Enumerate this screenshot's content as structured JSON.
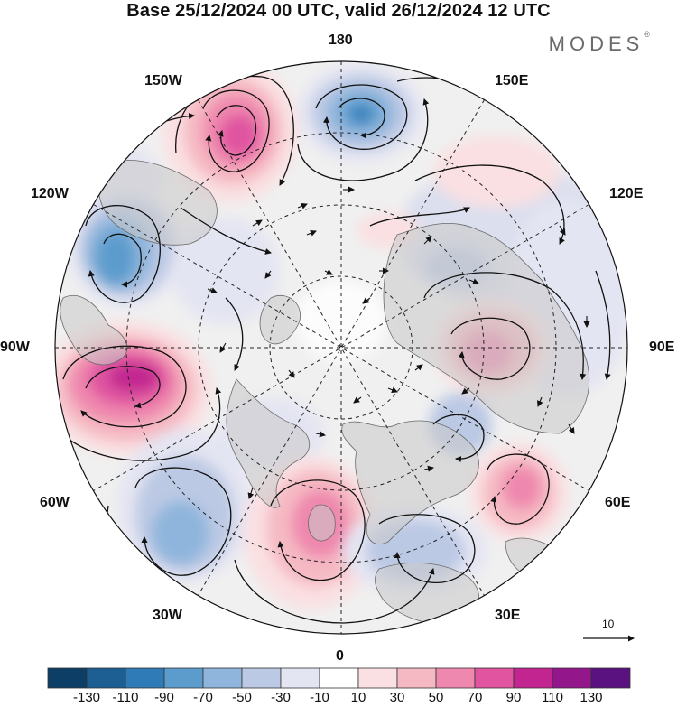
{
  "title": "Base 25/12/2024 00 UTC, valid 26/12/2024 12 UTC",
  "brand": "MODES",
  "brand_mark": "®",
  "longitudes": {
    "n180": "180",
    "n150w": "150W",
    "n150e": "150E",
    "n120w": "120W",
    "n120e": "120E",
    "n90w": "90W",
    "n90e": "90E",
    "n60w": "60W",
    "n60e": "60E",
    "n30w": "30W",
    "n30e": "30E",
    "n0": "0"
  },
  "reference_vector_label": "10",
  "colorbar": {
    "colors": [
      "#0d3e66",
      "#1d5f92",
      "#2f7bb8",
      "#5c9ccd",
      "#8fb5dc",
      "#bcc9e4",
      "#e4e5f2",
      "#ffffff",
      "#fae0e2",
      "#f5b9c3",
      "#ef88ae",
      "#e054a0",
      "#c22590",
      "#93168b",
      "#5a1280"
    ],
    "ticks": [
      "-130",
      "-110",
      "-90",
      "-70",
      "-50",
      "-30",
      "-10",
      "10",
      "30",
      "50",
      "70",
      "90",
      "110",
      "130"
    ]
  },
  "anomaly_centers": [
    {
      "sign": "positive",
      "value": 110,
      "near": "150W"
    },
    {
      "sign": "negative",
      "value": -90,
      "near": "180"
    },
    {
      "sign": "negative",
      "value": -70,
      "near": "120W"
    },
    {
      "sign": "positive",
      "value": 110,
      "near": "90W"
    },
    {
      "sign": "negative",
      "value": -50,
      "near": "60W"
    },
    {
      "sign": "positive",
      "value": 70,
      "near": "0"
    },
    {
      "sign": "negative",
      "value": -50,
      "near": "30E"
    },
    {
      "sign": "positive",
      "value": 70,
      "near": "60E"
    },
    {
      "sign": "positive",
      "value": 70,
      "near": "90E"
    },
    {
      "sign": "positive",
      "value": 30,
      "near": "150E"
    }
  ]
}
